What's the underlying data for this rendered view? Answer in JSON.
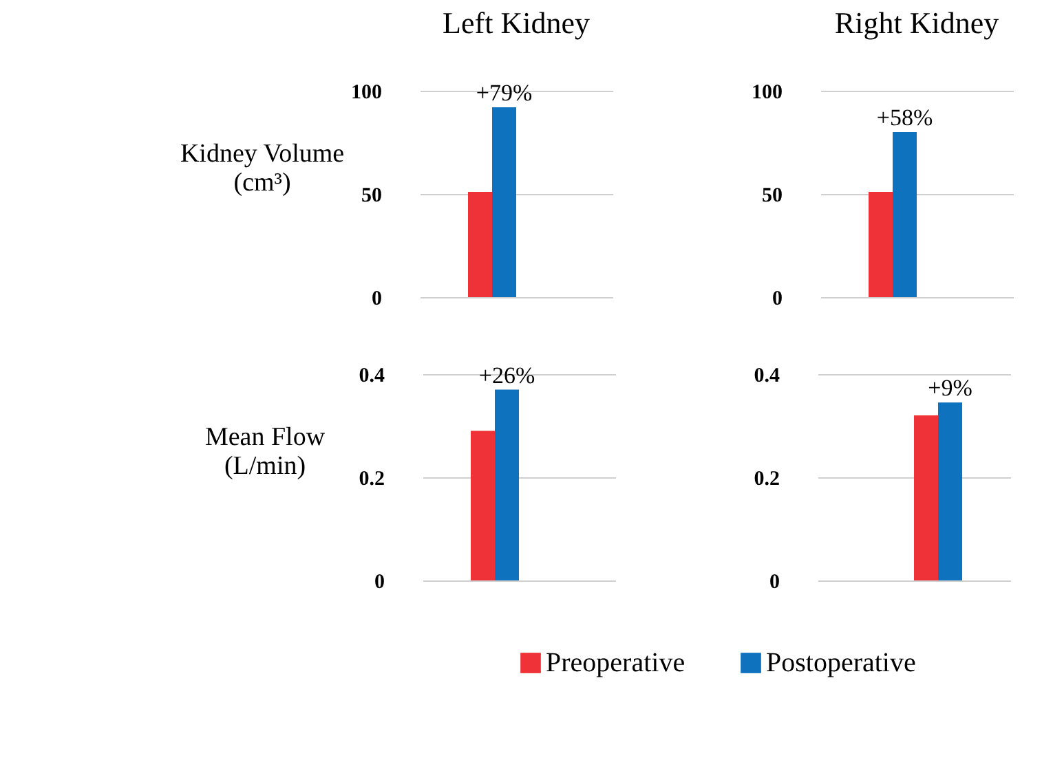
{
  "chart_data": [
    {
      "type": "bar",
      "title": "Left Kidney",
      "ylabel": "Kidney Volume (cm³)",
      "categories": [
        null
      ],
      "ylim": [
        0,
        100
      ],
      "yticks": [
        0,
        50,
        100
      ],
      "grid": "y",
      "annotations": [
        {
          "text": "+79%",
          "y": 92
        }
      ],
      "series": [
        {
          "color": "#ee3237",
          "values": [
            51
          ]
        },
        {
          "color": "#0f72bf",
          "values": [
            92
          ]
        }
      ]
    },
    {
      "type": "bar",
      "title": "Right Kidney",
      "categories": [
        null
      ],
      "ylim": [
        0,
        100
      ],
      "yticks": [
        0,
        50,
        100
      ],
      "grid": "y",
      "annotations": [
        {
          "text": "+58%",
          "y": 80
        }
      ],
      "series": [
        {
          "color": "#ee3237",
          "values": [
            51
          ]
        },
        {
          "color": "#0f72bf",
          "values": [
            80
          ]
        }
      ]
    },
    {
      "type": "bar",
      "ylabel": "Mean Flow (L/min)",
      "categories": [
        null
      ],
      "ylim": [
        0,
        0.4
      ],
      "yticks": [
        0,
        0.2,
        0.4
      ],
      "grid": "y",
      "annotations": [
        {
          "text": "+26%",
          "y": 0.37
        }
      ],
      "series": [
        {
          "color": "#ee3237",
          "values": [
            0.29
          ]
        },
        {
          "color": "#0f72bf",
          "values": [
            0.37
          ]
        }
      ]
    },
    {
      "type": "bar",
      "categories": [
        null
      ],
      "ylim": [
        0,
        0.4
      ],
      "yticks": [
        0,
        0.2,
        0.4
      ],
      "grid": "y",
      "legend": "bottom",
      "annotations": [
        {
          "text": "+9%",
          "y": 0.345
        }
      ],
      "series": [
        {
          "name": "Preoperative",
          "color": "#ee3237",
          "values": [
            0.32
          ]
        },
        {
          "name": "Postoperative",
          "color": "#0f72bf",
          "values": [
            0.345
          ]
        }
      ]
    }
  ]
}
